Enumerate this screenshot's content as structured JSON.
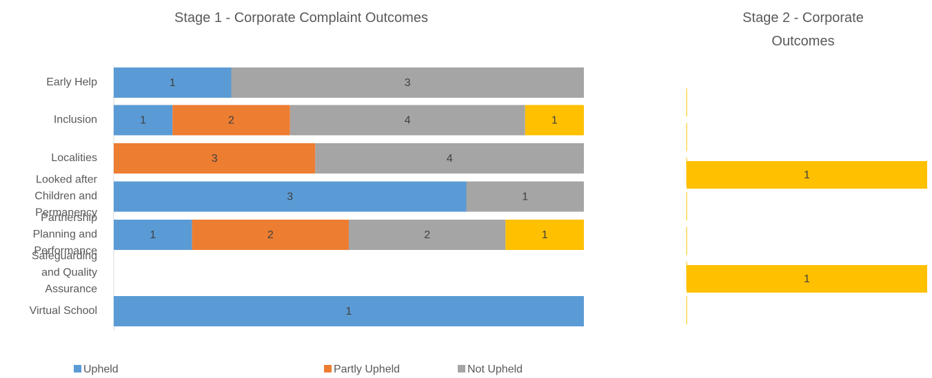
{
  "chart_data": [
    {
      "type": "stacked_bar_100",
      "title": "Stage 1 - Corporate Complaint Outcomes",
      "categories": [
        "Early Help",
        "Inclusion",
        "Localities",
        "Looked after Children and Permanency",
        "Partnership Planning and Performance",
        "Safeguarding and Quality Assurance",
        "Virtual School"
      ],
      "series": [
        {
          "name": "Upheld",
          "color": "#5b9bd5",
          "values": [
            1,
            1,
            null,
            3,
            1,
            null,
            1
          ]
        },
        {
          "name": "Partly Upheld",
          "color": "#ed7d31",
          "values": [
            null,
            2,
            3,
            null,
            2,
            null,
            null
          ]
        },
        {
          "name": "Not Upheld",
          "color": "#a5a5a5",
          "values": [
            3,
            4,
            4,
            1,
            2,
            null,
            null
          ]
        },
        {
          "color": "#ffc000",
          "values": [
            null,
            1,
            null,
            null,
            1,
            null,
            null
          ]
        }
      ]
    },
    {
      "type": "stacked_bar_100",
      "title": "Stage 2 - Corporate Outcomes",
      "categories": [
        null,
        null,
        null,
        null,
        null,
        null,
        null
      ],
      "series": [
        {
          "color": "#ffc000",
          "values": [
            null,
            null,
            1,
            null,
            null,
            1,
            null
          ]
        }
      ]
    }
  ]
}
